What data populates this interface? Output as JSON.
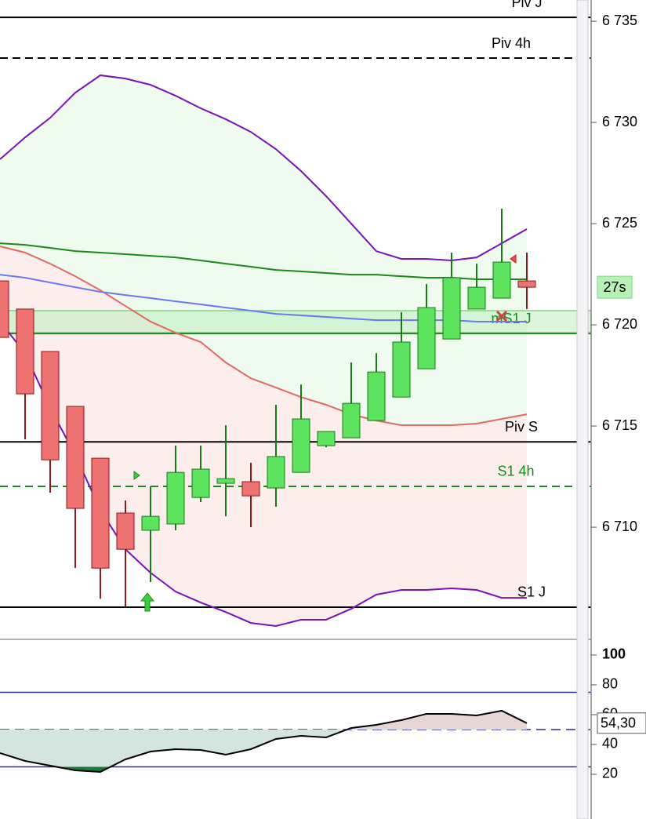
{
  "chart_data": [
    {
      "type": "candlestick",
      "categories": [
        null,
        null,
        null,
        null,
        null,
        null,
        null,
        null,
        null,
        null,
        null,
        null,
        null,
        null,
        null,
        null,
        null,
        null,
        null,
        null,
        null,
        null
      ],
      "open": [
        6722.17,
        6720.78,
        6718.68,
        6715.97,
        6713.41,
        6710.7,
        6709.85,
        6710.16,
        6711.47,
        6712.17,
        6712.25,
        6711.94,
        6712.71,
        6714.03,
        6714.42,
        6715.27,
        6716.43,
        6717.83,
        6719.3,
        6720.78,
        6721.32,
        6722.17
      ],
      "high": [
        6722.17,
        6720.78,
        6718.68,
        6715.97,
        6713.41,
        6711.32,
        6712.02,
        6714.03,
        6714.03,
        6715.04,
        6713.18,
        6716.05,
        6717.05,
        6714.73,
        6718.14,
        6718.6,
        6720.62,
        6722.02,
        6723.57,
        6723.02,
        6725.74,
        6723.57
      ],
      "low": [
        6719.38,
        6714.34,
        6711.71,
        6707.98,
        6706.47,
        6706.09,
        6707.29,
        6709.85,
        6711.24,
        6710.54,
        6710.0,
        6711.01,
        6712.71,
        6713.95,
        6714.42,
        6715.27,
        6716.43,
        6717.83,
        6719.3,
        6720.78,
        6721.32,
        6720.78
      ],
      "close": [
        6719.38,
        6716.59,
        6713.33,
        6710.93,
        6707.98,
        6708.91,
        6710.54,
        6712.71,
        6712.87,
        6712.4,
        6711.55,
        6713.49,
        6715.35,
        6714.73,
        6716.12,
        6717.67,
        6719.15,
        6720.85,
        6722.33,
        6721.86,
        6723.1,
        6721.86
      ],
      "up_color": "#5ee35e",
      "down_color": "#ef7272",
      "series": [
        {
          "color": "#7a12b8",
          "values": [
            6728.18,
            6729.26,
            6730.23,
            6731.47,
            6732.33,
            6732.17,
            6731.86,
            6731.32,
            6730.7,
            6730.16,
            6729.53,
            6728.68,
            6727.6,
            6726.36,
            6725.0,
            6723.64,
            6723.26,
            6723.26,
            6723.18,
            6723.33,
            6724.03,
            6724.73
          ]
        },
        {
          "color": "#e06a5e",
          "values": [
            6723.88,
            6723.57,
            6723.02,
            6722.4,
            6721.71,
            6720.93,
            6720.16,
            6719.61,
            6719.15,
            6718.14,
            6717.36,
            6716.9,
            6716.43,
            6716.05,
            6715.58,
            6715.27,
            6715.04,
            6715.04,
            6715.04,
            6715.12,
            6715.35,
            6715.58
          ]
        },
        {
          "color": "#7a12b8",
          "values": [
            6720.16,
            6718.6,
            6715.89,
            6713.57,
            6710.85,
            6708.91,
            6707.75,
            6706.82,
            6706.28,
            6705.81,
            6705.27,
            6705.12,
            6705.43,
            6705.43,
            6705.97,
            6706.67,
            6706.9,
            6706.9,
            6706.98,
            6706.9,
            6706.51,
            6706.51
          ]
        },
        {
          "color": "#1a8a1a",
          "values": [
            6724.03,
            6723.95,
            6723.8,
            6723.64,
            6723.57,
            6723.49,
            6723.41,
            6723.33,
            6723.18,
            6723.02,
            6722.87,
            6722.71,
            6722.64,
            6722.56,
            6722.48,
            6722.48,
            6722.4,
            6722.33,
            6722.33,
            6722.25,
            6722.25,
            6722.25
          ]
        },
        {
          "color": "#6a7af0",
          "values": [
            6722.48,
            6722.33,
            6722.09,
            6721.86,
            6721.63,
            6721.47,
            6721.32,
            6721.16,
            6721.01,
            6720.85,
            6720.7,
            6720.54,
            6720.47,
            6720.39,
            6720.31,
            6720.23,
            6720.23,
            6720.23,
            6720.23,
            6720.16,
            6720.16,
            6720.16
          ]
        }
      ],
      "levels": [
        {
          "label": "Piv J",
          "value": 6735.19,
          "color": "#000000",
          "dashed": false
        },
        {
          "label": "Piv 4h",
          "value": 6733.18,
          "color": "#000000",
          "dashed": true
        },
        {
          "label": "mS1 J",
          "value": 6719.57,
          "color": "#1a8a1a",
          "dashed": false
        },
        {
          "label": "Piv S",
          "value": 6714.22,
          "color": "#000000",
          "dashed": false
        },
        {
          "label": "S1 4h",
          "value": 6712.02,
          "color": "#1a8a1a",
          "dashed": true
        },
        {
          "label": "S1 J",
          "value": 6706.05,
          "color": "#000000",
          "dashed": false
        }
      ],
      "zone": [
        6719.61,
        6720.7
      ],
      "countdown": "27s",
      "ylim": [
        6704.46,
        6736.05
      ],
      "yticks": [
        {
          "value": 6710,
          "label": "6 710"
        },
        {
          "value": 6715,
          "label": "6 715"
        },
        {
          "value": 6720,
          "label": "6 720"
        },
        {
          "value": 6725,
          "label": "6 725"
        },
        {
          "value": 6730,
          "label": "6 730"
        },
        {
          "value": 6735,
          "label": "6 735"
        }
      ]
    },
    {
      "type": "line",
      "categories": [
        null,
        null,
        null,
        null,
        null,
        null,
        null,
        null,
        null,
        null,
        null,
        null,
        null,
        null,
        null,
        null,
        null,
        null,
        null,
        null,
        null,
        null
      ],
      "series": [
        {
          "color": "#000000",
          "values": [
            34.21,
            28.95,
            25.79,
            22.63,
            21.58,
            30,
            35.26,
            36.84,
            36.32,
            33.16,
            36.84,
            43.68,
            45.79,
            44.74,
            51.05,
            53.16,
            56.32,
            60.53,
            60.53,
            59.47,
            62.63,
            54.3
          ],
          "value_labels": [
            null,
            null,
            null,
            null,
            null,
            null,
            null,
            null,
            null,
            null,
            null,
            null,
            null,
            null,
            null,
            null,
            null,
            null,
            null,
            null,
            null,
            "54,30"
          ]
        }
      ],
      "levels": [
        {
          "value": 75,
          "dashed": false
        },
        {
          "value": 50,
          "dashed": true
        },
        {
          "value": 25,
          "dashed": false
        }
      ],
      "ylim": [
        -10,
        110.5
      ],
      "yticks": [
        20,
        40,
        60,
        80,
        100
      ]
    }
  ]
}
